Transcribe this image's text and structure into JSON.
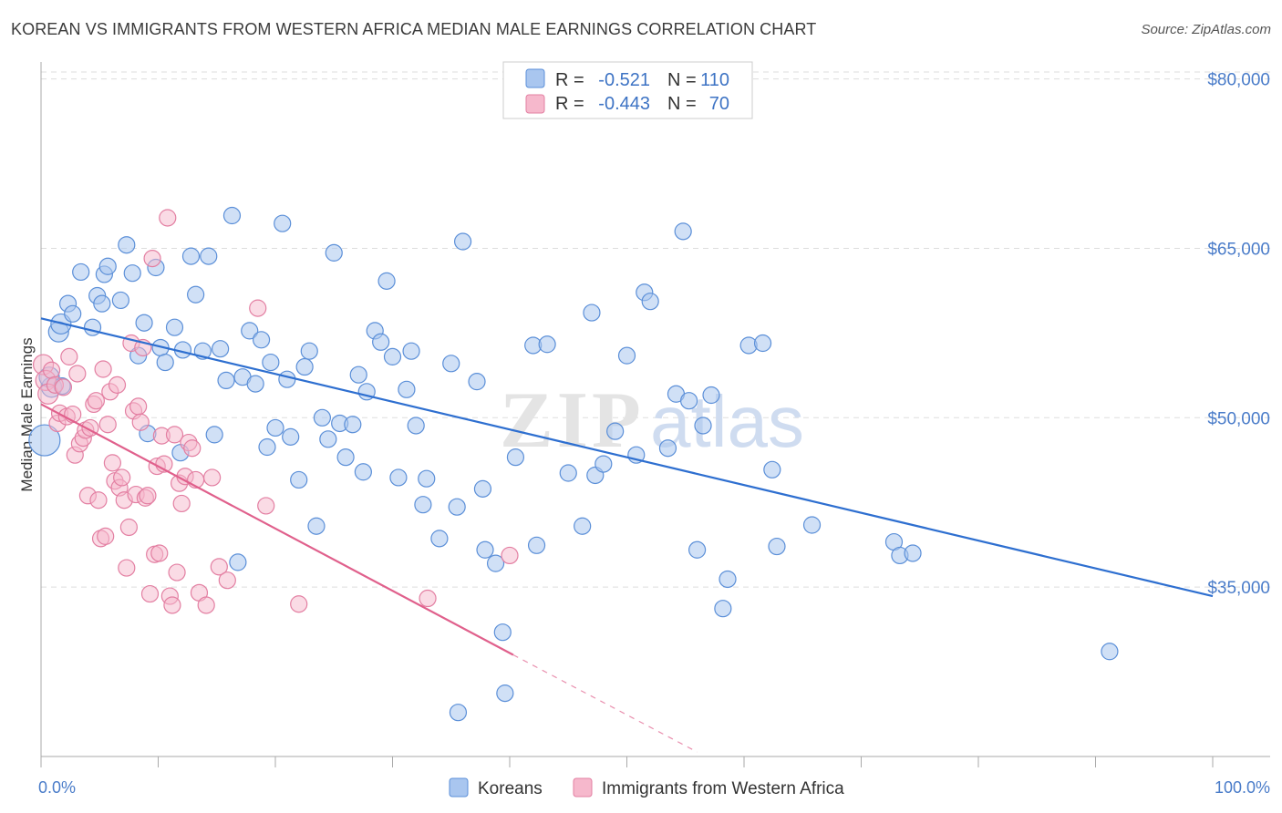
{
  "title": "KOREAN VS IMMIGRANTS FROM WESTERN AFRICA MEDIAN MALE EARNINGS CORRELATION CHART",
  "source": "Source: ZipAtlas.com",
  "watermark": {
    "zip": "ZIP",
    "atlas": "atlas"
  },
  "colors": {
    "blue_fill": "#a9c6ef",
    "blue_stroke": "#5b8fd8",
    "blue_line": "#2e6fd0",
    "pink_fill": "#f6b8cc",
    "pink_stroke": "#e37fa2",
    "pink_line": "#e0608c",
    "grid": "#dddddd",
    "axis_label": "#4a7cc9"
  },
  "chart_data": {
    "type": "scatter",
    "title": "KOREAN VS IMMIGRANTS FROM WESTERN AFRICA MEDIAN MALE EARNINGS CORRELATION CHART",
    "ylabel": "Median Male Earnings",
    "x_tick_labels": [
      "0.0%",
      "100.0%"
    ],
    "y_tick_labels": [
      "$35,000",
      "$50,000",
      "$65,000",
      "$80,000"
    ],
    "y_ticks": [
      35000,
      50000,
      65000,
      80000
    ],
    "xlim": [
      0,
      100
    ],
    "ylim": [
      20000,
      81500
    ],
    "legend": [
      {
        "r_label": "R =",
        "r_value": "-0.521",
        "n_label": "N =",
        "n_value": "110"
      },
      {
        "r_label": "R =",
        "r_value": "-0.443",
        "n_label": "N =",
        "n_value": "70"
      }
    ],
    "series": [
      {
        "name": "Koreans",
        "trend": {
          "x": [
            0,
            100
          ],
          "y": [
            58800,
            34200
          ]
        },
        "points": [
          [
            0.3,
            48000
          ],
          [
            0.9,
            52700
          ],
          [
            0.7,
            53600
          ],
          [
            1.5,
            57600
          ],
          [
            1.7,
            58300
          ],
          [
            2.3,
            60100
          ],
          [
            2.7,
            59200
          ],
          [
            1.8,
            52800
          ],
          [
            3.4,
            62900
          ],
          [
            4.4,
            58000
          ],
          [
            4.8,
            60800
          ],
          [
            5.2,
            60100
          ],
          [
            5.4,
            62700
          ],
          [
            5.7,
            63400
          ],
          [
            6.8,
            60400
          ],
          [
            7.3,
            65300
          ],
          [
            7.8,
            62800
          ],
          [
            8.3,
            55500
          ],
          [
            8.8,
            58400
          ],
          [
            9.1,
            48600
          ],
          [
            9.8,
            63300
          ],
          [
            10.2,
            56200
          ],
          [
            10.6,
            54900
          ],
          [
            11.4,
            58000
          ],
          [
            11.9,
            46900
          ],
          [
            12.1,
            56000
          ],
          [
            12.8,
            64300
          ],
          [
            13.2,
            60900
          ],
          [
            13.8,
            55900
          ],
          [
            14.3,
            64300
          ],
          [
            14.8,
            48500
          ],
          [
            15.3,
            56100
          ],
          [
            15.8,
            53300
          ],
          [
            16.3,
            67900
          ],
          [
            16.8,
            37200
          ],
          [
            17.2,
            53600
          ],
          [
            17.8,
            57700
          ],
          [
            18.3,
            53000
          ],
          [
            18.8,
            56900
          ],
          [
            19.3,
            47400
          ],
          [
            19.6,
            54900
          ],
          [
            20.0,
            49100
          ],
          [
            20.6,
            67200
          ],
          [
            21.0,
            53400
          ],
          [
            21.3,
            48300
          ],
          [
            22.0,
            44500
          ],
          [
            22.5,
            54500
          ],
          [
            22.9,
            55900
          ],
          [
            23.5,
            40400
          ],
          [
            24.0,
            50000
          ],
          [
            24.5,
            48100
          ],
          [
            25.0,
            64600
          ],
          [
            25.5,
            49500
          ],
          [
            26.0,
            46500
          ],
          [
            26.6,
            49400
          ],
          [
            27.1,
            53800
          ],
          [
            27.5,
            45200
          ],
          [
            27.8,
            52300
          ],
          [
            28.5,
            57700
          ],
          [
            29.0,
            56700
          ],
          [
            29.5,
            62100
          ],
          [
            30.0,
            55400
          ],
          [
            30.5,
            44700
          ],
          [
            31.2,
            52500
          ],
          [
            31.6,
            55900
          ],
          [
            32.0,
            49300
          ],
          [
            32.6,
            42300
          ],
          [
            32.9,
            44600
          ],
          [
            34.0,
            39300
          ],
          [
            35.0,
            54800
          ],
          [
            35.5,
            42100
          ],
          [
            36.0,
            65600
          ],
          [
            37.2,
            53200
          ],
          [
            37.7,
            43700
          ],
          [
            37.9,
            38300
          ],
          [
            38.8,
            37100
          ],
          [
            39.4,
            31000
          ],
          [
            39.6,
            25600
          ],
          [
            40.5,
            46500
          ],
          [
            42.0,
            56400
          ],
          [
            42.3,
            38700
          ],
          [
            43.2,
            56500
          ],
          [
            35.6,
            23900
          ],
          [
            45.0,
            45100
          ],
          [
            46.2,
            40400
          ],
          [
            47.0,
            59300
          ],
          [
            47.3,
            44900
          ],
          [
            48.0,
            45900
          ],
          [
            49.0,
            48800
          ],
          [
            50.0,
            55500
          ],
          [
            50.8,
            46700
          ],
          [
            51.5,
            61100
          ],
          [
            52.0,
            60300
          ],
          [
            53.5,
            47300
          ],
          [
            54.2,
            52100
          ],
          [
            54.8,
            66500
          ],
          [
            55.3,
            51500
          ],
          [
            56.0,
            38300
          ],
          [
            56.5,
            49300
          ],
          [
            57.2,
            52000
          ],
          [
            58.2,
            33100
          ],
          [
            58.6,
            35700
          ],
          [
            60.4,
            56400
          ],
          [
            61.6,
            56600
          ],
          [
            62.4,
            45400
          ],
          [
            62.8,
            38600
          ],
          [
            65.8,
            40500
          ],
          [
            72.8,
            39000
          ],
          [
            73.3,
            37800
          ],
          [
            74.4,
            38000
          ],
          [
            91.2,
            29300
          ]
        ]
      },
      {
        "name": "Immigrants from Western Africa",
        "trend": {
          "x": [
            0,
            40.3
          ],
          "y": [
            51200,
            29000
          ]
        },
        "trend_dashed": {
          "x": [
            40.3,
            56.0
          ],
          "y": [
            29000,
            20400
          ]
        },
        "points": [
          [
            0.2,
            54700
          ],
          [
            0.4,
            53300
          ],
          [
            0.6,
            52100
          ],
          [
            0.9,
            54200
          ],
          [
            1.2,
            52900
          ],
          [
            1.4,
            49500
          ],
          [
            1.6,
            50400
          ],
          [
            1.9,
            52700
          ],
          [
            2.2,
            50100
          ],
          [
            2.4,
            55400
          ],
          [
            2.7,
            50300
          ],
          [
            2.9,
            46700
          ],
          [
            3.1,
            53900
          ],
          [
            3.3,
            47700
          ],
          [
            3.6,
            48200
          ],
          [
            3.8,
            48900
          ],
          [
            4.0,
            43100
          ],
          [
            4.2,
            49100
          ],
          [
            4.5,
            51200
          ],
          [
            4.7,
            51500
          ],
          [
            4.9,
            42700
          ],
          [
            5.1,
            39300
          ],
          [
            5.3,
            54300
          ],
          [
            5.5,
            39500
          ],
          [
            5.7,
            49400
          ],
          [
            5.9,
            52300
          ],
          [
            6.1,
            46000
          ],
          [
            6.3,
            44400
          ],
          [
            6.5,
            52900
          ],
          [
            6.7,
            43800
          ],
          [
            6.9,
            44700
          ],
          [
            7.1,
            42700
          ],
          [
            7.3,
            36700
          ],
          [
            7.5,
            40300
          ],
          [
            7.7,
            56600
          ],
          [
            7.9,
            50600
          ],
          [
            8.1,
            43200
          ],
          [
            8.3,
            51000
          ],
          [
            8.5,
            49600
          ],
          [
            8.7,
            56200
          ],
          [
            8.9,
            42900
          ],
          [
            9.1,
            43100
          ],
          [
            9.3,
            34400
          ],
          [
            9.5,
            64100
          ],
          [
            9.7,
            37900
          ],
          [
            9.9,
            45700
          ],
          [
            10.1,
            38000
          ],
          [
            10.3,
            48400
          ],
          [
            10.5,
            45900
          ],
          [
            10.8,
            67700
          ],
          [
            11.0,
            34200
          ],
          [
            11.2,
            33400
          ],
          [
            11.4,
            48500
          ],
          [
            11.6,
            36300
          ],
          [
            11.8,
            44200
          ],
          [
            12.0,
            42400
          ],
          [
            12.3,
            44800
          ],
          [
            12.6,
            47800
          ],
          [
            12.9,
            47300
          ],
          [
            13.2,
            44500
          ],
          [
            13.5,
            34500
          ],
          [
            14.1,
            33400
          ],
          [
            14.6,
            44700
          ],
          [
            15.2,
            36800
          ],
          [
            15.9,
            35600
          ],
          [
            18.5,
            59700
          ],
          [
            19.2,
            42200
          ],
          [
            22.0,
            33500
          ],
          [
            33.0,
            34000
          ],
          [
            40.0,
            37800
          ]
        ]
      }
    ]
  },
  "legend_bottom": {
    "series1": "Koreans",
    "series2": "Immigrants from Western Africa"
  }
}
